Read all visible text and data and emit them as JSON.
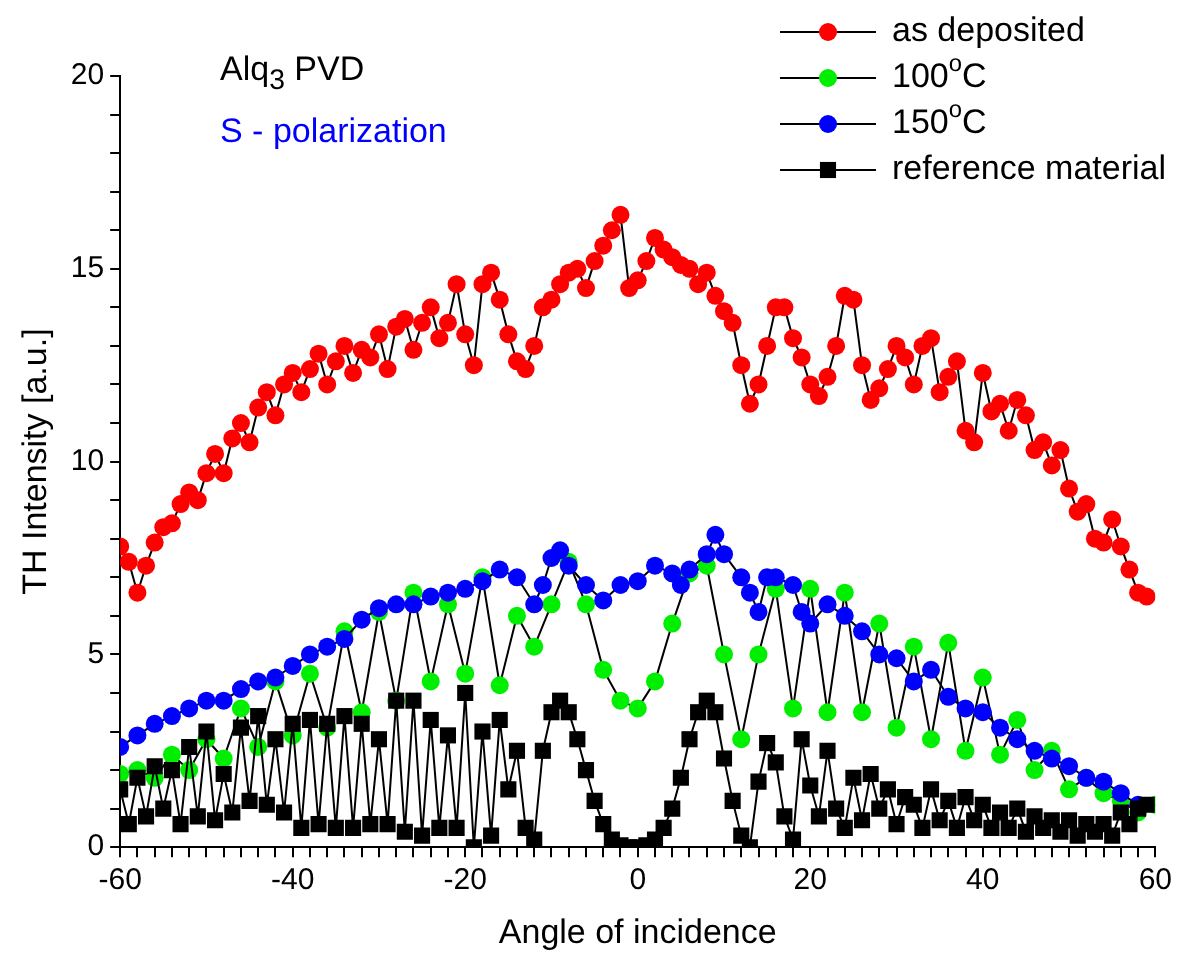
{
  "chart_data": {
    "type": "line",
    "xlabel": "Angle of incidence",
    "ylabel": "TH Intensity [a.u.]",
    "annotations": [
      "Alq$_{3}$ PVD",
      "S - polarization"
    ],
    "xlim": [
      -60,
      60
    ],
    "xticks": [
      -60,
      {
        "value": -58,
        "label": null
      },
      {
        "value": -56,
        "label": null
      },
      {
        "value": -54,
        "label": null
      },
      {
        "value": -52,
        "label": null
      },
      {
        "value": -50,
        "label": null
      },
      {
        "value": -48,
        "label": null
      },
      {
        "value": -46,
        "label": null
      },
      {
        "value": -44,
        "label": null
      },
      {
        "value": -42,
        "label": null
      },
      -40,
      {
        "value": -38,
        "label": null
      },
      {
        "value": -36,
        "label": null
      },
      {
        "value": -34,
        "label": null
      },
      {
        "value": -32,
        "label": null
      },
      {
        "value": -30,
        "label": null
      },
      {
        "value": -28,
        "label": null
      },
      {
        "value": -26,
        "label": null
      },
      {
        "value": -24,
        "label": null
      },
      {
        "value": -22,
        "label": null
      },
      -20,
      {
        "value": -18,
        "label": null
      },
      {
        "value": -16,
        "label": null
      },
      {
        "value": -14,
        "label": null
      },
      {
        "value": -12,
        "label": null
      },
      {
        "value": -10,
        "label": null
      },
      {
        "value": -8,
        "label": null
      },
      {
        "value": -6,
        "label": null
      },
      {
        "value": -4,
        "label": null
      },
      {
        "value": -2,
        "label": null
      },
      0,
      {
        "value": 2,
        "label": null
      },
      {
        "value": 4,
        "label": null
      },
      {
        "value": 6,
        "label": null
      },
      {
        "value": 8,
        "label": null
      },
      {
        "value": 10,
        "label": null
      },
      {
        "value": 12,
        "label": null
      },
      {
        "value": 14,
        "label": null
      },
      {
        "value": 16,
        "label": null
      },
      {
        "value": 18,
        "label": null
      },
      20,
      {
        "value": 22,
        "label": null
      },
      {
        "value": 24,
        "label": null
      },
      {
        "value": 26,
        "label": null
      },
      {
        "value": 28,
        "label": null
      },
      {
        "value": 30,
        "label": null
      },
      {
        "value": 32,
        "label": null
      },
      {
        "value": 34,
        "label": null
      },
      {
        "value": 36,
        "label": null
      },
      {
        "value": 38,
        "label": null
      },
      40,
      {
        "value": 42,
        "label": null
      },
      {
        "value": 44,
        "label": null
      },
      {
        "value": 46,
        "label": null
      },
      {
        "value": 48,
        "label": null
      },
      {
        "value": 50,
        "label": null
      },
      {
        "value": 52,
        "label": null
      },
      {
        "value": 54,
        "label": null
      },
      {
        "value": 56,
        "label": null
      },
      {
        "value": 58,
        "label": null
      },
      60
    ],
    "ylim": [
      0,
      20
    ],
    "yticks": [
      0,
      {
        "value": 1,
        "label": null
      },
      {
        "value": 2,
        "label": null
      },
      {
        "value": 3,
        "label": null
      },
      {
        "value": 4,
        "label": null
      },
      5,
      {
        "value": 6,
        "label": null
      },
      {
        "value": 7,
        "label": null
      },
      {
        "value": 8,
        "label": null
      },
      {
        "value": 9,
        "label": null
      },
      10,
      {
        "value": 11,
        "label": null
      },
      {
        "value": 12,
        "label": null
      },
      {
        "value": 13,
        "label": null
      },
      {
        "value": 14,
        "label": null
      },
      15,
      {
        "value": 16,
        "label": null
      },
      {
        "value": 17,
        "label": null
      },
      {
        "value": 18,
        "label": null
      },
      {
        "value": 19,
        "label": null
      },
      20
    ],
    "grid": false,
    "legend": "top right",
    "series": [
      {
        "name": "as deposited",
        "color": "#ff0000",
        "marker": "circle",
        "x": [
          -60,
          -59,
          -58,
          -57,
          -56,
          -55,
          -54,
          -53,
          -52,
          -51,
          -50,
          -49,
          -48,
          -47,
          -46,
          -45,
          -44,
          -43,
          -42,
          -41,
          -40,
          -39,
          -38,
          -37,
          -36,
          -35,
          -34,
          -33,
          -32,
          -31,
          -30,
          -29,
          -28,
          -27,
          -26,
          -25,
          -24,
          -23,
          -22,
          -21,
          -20,
          -19,
          -18,
          -17,
          -16,
          -15,
          -14,
          -13,
          -12,
          -11,
          -10,
          -9,
          -8,
          -7,
          -6,
          -5,
          -4,
          -3,
          -2,
          -1,
          0,
          1,
          2,
          3,
          4,
          5,
          6,
          7,
          8,
          9,
          10,
          11,
          12,
          13,
          14,
          15,
          16,
          17,
          18,
          19,
          20,
          21,
          22,
          23,
          24,
          25,
          26,
          27,
          28,
          29,
          30,
          31,
          32,
          33,
          34,
          35,
          36,
          37,
          38,
          39,
          40,
          41,
          42,
          43,
          44,
          45,
          46,
          47,
          48,
          49,
          50,
          51,
          52,
          53,
          54,
          55,
          56,
          57,
          58,
          59
        ],
        "values": [
          7.8,
          7.4,
          6.6,
          7.3,
          7.9,
          8.3,
          8.4,
          8.9,
          9.2,
          9.0,
          9.7,
          10.2,
          9.7,
          10.6,
          11.0,
          10.5,
          11.4,
          11.8,
          11.2,
          12.0,
          12.3,
          11.8,
          12.4,
          12.8,
          12.0,
          12.6,
          13.0,
          12.3,
          12.9,
          12.7,
          13.3,
          12.4,
          13.5,
          13.7,
          12.9,
          13.6,
          14.0,
          13.2,
          13.6,
          14.6,
          13.3,
          12.5,
          14.6,
          14.9,
          14.2,
          13.3,
          12.6,
          12.4,
          13.0,
          14.0,
          14.2,
          14.6,
          14.9,
          15.0,
          14.5,
          15.2,
          15.6,
          16.0,
          16.4,
          14.5,
          14.7,
          15.2,
          15.8,
          15.5,
          15.3,
          15.1,
          15.0,
          14.6,
          14.9,
          14.3,
          13.9,
          13.6,
          12.5,
          11.5,
          12.0,
          13.0,
          14.0,
          14.0,
          13.2,
          12.7,
          12.0,
          11.7,
          12.2,
          13.0,
          14.3,
          14.2,
          12.5,
          11.6,
          11.9,
          12.4,
          13.0,
          12.7,
          12.0,
          13.0,
          13.2,
          11.8,
          12.2,
          12.6,
          10.8,
          10.5,
          12.3,
          11.3,
          11.5,
          10.8,
          11.6,
          11.2,
          10.3,
          10.5,
          9.9,
          10.3,
          9.3,
          8.7,
          8.9,
          8.0,
          7.9,
          8.5,
          7.8,
          7.2,
          6.6,
          6.5
        ]
      },
      {
        "name": "100$^{o}$C",
        "color": "#00ee00",
        "marker": "circle",
        "x": [
          -60,
          -58,
          -56,
          -54,
          -52,
          -50,
          -48,
          -46,
          -44,
          -42,
          -40,
          -38,
          -36,
          -34,
          -32,
          -30,
          -28,
          -26,
          -24,
          -22,
          -20,
          -18,
          -16,
          -14,
          -12,
          -10,
          -8,
          -6,
          -4,
          -2,
          0,
          2,
          4,
          6,
          8,
          10,
          12,
          14,
          16,
          18,
          20,
          22,
          24,
          26,
          28,
          30,
          32,
          34,
          36,
          38,
          40,
          42,
          44,
          46,
          48,
          50,
          52,
          54,
          56,
          58,
          60
        ],
        "values": [
          1.9,
          2.0,
          1.8,
          2.4,
          2.0,
          2.8,
          2.3,
          3.6,
          2.6,
          4.3,
          2.9,
          4.5,
          3.1,
          5.6,
          3.5,
          6.1,
          3.8,
          6.6,
          4.3,
          6.3,
          4.5,
          7.0,
          4.2,
          6.0,
          5.2,
          6.3,
          7.4,
          6.3,
          4.6,
          3.8,
          3.6,
          4.3,
          5.8,
          7.1,
          7.3,
          5.0,
          2.8,
          5.0,
          6.7,
          3.6,
          6.7,
          3.5,
          6.6,
          3.5,
          5.8,
          3.1,
          5.2,
          2.8,
          5.3,
          2.5,
          4.4,
          2.4,
          3.3,
          2.0,
          2.5,
          1.5,
          1.8,
          1.4,
          1.2,
          0.9,
          1.1
        ]
      },
      {
        "name": "150$^{o}$C",
        "color": "#0000ff",
        "marker": "circle",
        "x": [
          -60,
          -58,
          -56,
          -54,
          -52,
          -50,
          -48,
          -46,
          -44,
          -42,
          -40,
          -38,
          -36,
          -34,
          -32,
          -30,
          -28,
          -26,
          -24,
          -22,
          -20,
          -18,
          -16,
          -14,
          -12,
          -11,
          -10,
          -9,
          -8,
          -6,
          -4,
          -2,
          0,
          2,
          4,
          5,
          6,
          8,
          9,
          10,
          12,
          13,
          14,
          15,
          16,
          18,
          19,
          20,
          22,
          24,
          26,
          28,
          30,
          32,
          34,
          36,
          38,
          40,
          42,
          44,
          46,
          48,
          50,
          52,
          54,
          56,
          58
        ],
        "values": [
          2.6,
          2.9,
          3.2,
          3.4,
          3.6,
          3.8,
          3.8,
          4.1,
          4.3,
          4.4,
          4.7,
          5.0,
          5.2,
          5.4,
          5.9,
          6.2,
          6.3,
          6.3,
          6.5,
          6.6,
          6.7,
          6.9,
          7.2,
          7.0,
          6.3,
          6.8,
          7.5,
          7.7,
          7.3,
          6.8,
          6.4,
          6.8,
          6.9,
          7.3,
          7.1,
          6.8,
          7.2,
          7.6,
          8.1,
          7.6,
          7.0,
          6.6,
          6.1,
          7.0,
          7.0,
          6.8,
          6.1,
          5.8,
          6.3,
          6.0,
          5.6,
          5.0,
          4.9,
          4.3,
          4.6,
          3.9,
          3.6,
          3.5,
          3.1,
          2.8,
          2.5,
          2.3,
          2.1,
          1.8,
          1.7,
          1.4,
          1.1
        ]
      },
      {
        "name": "reference material",
        "color": "#000000",
        "marker": "square",
        "x": [
          -60,
          -59,
          -58,
          -57,
          -56,
          -55,
          -54,
          -53,
          -52,
          -51,
          -50,
          -49,
          -48,
          -47,
          -46,
          -45,
          -44,
          -43,
          -42,
          -41,
          -40,
          -39,
          -38,
          -37,
          -36,
          -35,
          -34,
          -33,
          -32,
          -31,
          -30,
          -29,
          -28,
          -27,
          -26,
          -25,
          -24,
          -23,
          -22,
          -21,
          -20,
          -19,
          -18,
          -17,
          -16,
          -15,
          -14,
          -13,
          -12,
          -11,
          -10,
          -9,
          -8,
          -7,
          -6,
          -5,
          -4,
          -3,
          -2,
          -1,
          0,
          1,
          2,
          3,
          4,
          5,
          6,
          7,
          8,
          9,
          10,
          11,
          12,
          13,
          14,
          15,
          16,
          17,
          18,
          19,
          20,
          21,
          22,
          23,
          24,
          25,
          26,
          27,
          28,
          29,
          30,
          31,
          32,
          33,
          34,
          35,
          36,
          37,
          38,
          39,
          40,
          41,
          42,
          43,
          44,
          45,
          46,
          47,
          48,
          49,
          50,
          51,
          52,
          53,
          54,
          55,
          56,
          57,
          58,
          59
        ],
        "values": [
          1.5,
          0.6,
          1.8,
          0.8,
          2.1,
          1.0,
          2.0,
          0.6,
          2.6,
          0.8,
          3.0,
          0.7,
          1.9,
          0.9,
          3.1,
          1.2,
          3.4,
          1.1,
          2.8,
          0.9,
          3.2,
          0.5,
          3.3,
          0.6,
          3.2,
          0.5,
          3.4,
          0.5,
          3.2,
          0.6,
          2.8,
          0.6,
          3.8,
          0.4,
          3.8,
          0.3,
          3.3,
          0.5,
          2.9,
          0.5,
          4.0,
          0.0,
          3.0,
          0.3,
          3.3,
          1.5,
          2.5,
          0.5,
          0.2,
          2.5,
          3.5,
          3.8,
          3.5,
          2.8,
          2.0,
          1.2,
          0.6,
          0.2,
          0.05,
          0.0,
          0.0,
          0.05,
          0.2,
          0.5,
          1.0,
          1.8,
          2.8,
          3.5,
          3.8,
          3.5,
          2.3,
          1.2,
          0.3,
          0.0,
          1.7,
          2.7,
          2.2,
          0.8,
          0.2,
          2.8,
          1.6,
          0.8,
          2.5,
          1.0,
          0.5,
          1.8,
          0.7,
          1.9,
          1.0,
          1.5,
          0.6,
          1.3,
          1.1,
          0.5,
          1.5,
          0.7,
          1.2,
          0.5,
          1.3,
          0.7,
          1.1,
          0.5,
          0.9,
          0.5,
          1.0,
          0.4,
          0.8,
          0.5,
          0.7,
          0.4,
          0.7,
          0.3,
          0.6,
          0.4,
          0.6,
          0.3,
          0.9,
          0.6,
          1.0,
          1.1
        ]
      }
    ]
  }
}
